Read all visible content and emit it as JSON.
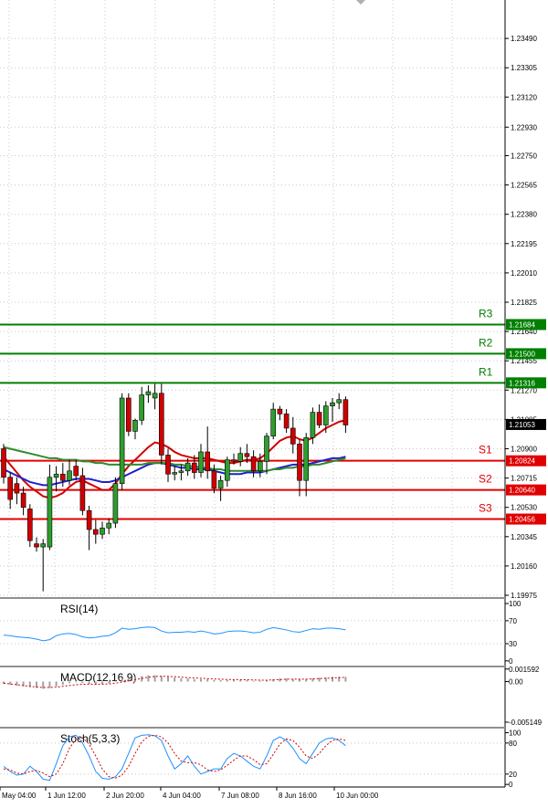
{
  "chart_data": {
    "type": "candlestick",
    "price_axis": {
      "ticks": [
        "1.23490",
        "1.23305",
        "1.23120",
        "1.22930",
        "1.22750",
        "1.22565",
        "1.22380",
        "1.22195",
        "1.22010",
        "1.21825",
        "1.21640",
        "1.21455",
        "1.21270",
        "1.21085",
        "1.20900",
        "1.20715",
        "1.20530",
        "1.20345",
        "1.20160",
        "1.19975"
      ],
      "range": [
        1.19975,
        1.23675
      ]
    },
    "time_axis": {
      "ticks": [
        "May 04:00",
        "1 Jun 12:00",
        "2 Jun 20:00",
        "4 Jun 04:00",
        "7 Jun 08:00",
        "8 Jun 16:00",
        "10 Jun 00:00"
      ]
    },
    "current_price": "1.21053",
    "levels": [
      {
        "name": "R3",
        "value": 1.21684,
        "label": "1.21684",
        "color": "#008000"
      },
      {
        "name": "R2",
        "value": 1.215,
        "label": "1.21500",
        "color": "#008000"
      },
      {
        "name": "R1",
        "value": 1.21316,
        "label": "1.21316",
        "color": "#008000"
      },
      {
        "name": "S1",
        "value": 1.20824,
        "label": "1.20824",
        "color": "#e00000"
      },
      {
        "name": "S2",
        "value": 1.2064,
        "label": "1.20640",
        "color": "#e00000"
      },
      {
        "name": "S3",
        "value": 1.20456,
        "label": "1.20456",
        "color": "#e00000"
      }
    ],
    "candles": [
      {
        "o": 1.209,
        "h": 1.2093,
        "l": 1.2068,
        "c": 1.2072
      },
      {
        "o": 1.2072,
        "h": 1.2075,
        "l": 1.2052,
        "c": 1.2058
      },
      {
        "o": 1.2068,
        "h": 1.2072,
        "l": 1.2055,
        "c": 1.2062
      },
      {
        "o": 1.2062,
        "h": 1.2066,
        "l": 1.2048,
        "c": 1.2053
      },
      {
        "o": 1.2052,
        "h": 1.2055,
        "l": 1.2028,
        "c": 1.2032
      },
      {
        "o": 1.203,
        "h": 1.2034,
        "l": 1.2025,
        "c": 1.2028
      },
      {
        "o": 1.2028,
        "h": 1.2033,
        "l": 1.2,
        "c": 1.203
      },
      {
        "o": 1.2028,
        "h": 1.208,
        "l": 1.2026,
        "c": 1.2072
      },
      {
        "o": 1.2072,
        "h": 1.2079,
        "l": 1.2063,
        "c": 1.2074
      },
      {
        "o": 1.2074,
        "h": 1.2081,
        "l": 1.2066,
        "c": 1.207
      },
      {
        "o": 1.207,
        "h": 1.2083,
        "l": 1.2067,
        "c": 1.2076
      },
      {
        "o": 1.2079,
        "h": 1.2083,
        "l": 1.207,
        "c": 1.2073
      },
      {
        "o": 1.2073,
        "h": 1.2078,
        "l": 1.2048,
        "c": 1.2051
      },
      {
        "o": 1.2051,
        "h": 1.2054,
        "l": 1.2026,
        "c": 1.2039
      },
      {
        "o": 1.2039,
        "h": 1.2045,
        "l": 1.203,
        "c": 1.2036
      },
      {
        "o": 1.2036,
        "h": 1.2044,
        "l": 1.2033,
        "c": 1.204
      },
      {
        "o": 1.204,
        "h": 1.2046,
        "l": 1.2036,
        "c": 1.2043
      },
      {
        "o": 1.2043,
        "h": 1.2072,
        "l": 1.204,
        "c": 1.2068
      },
      {
        "o": 1.2068,
        "h": 1.2125,
        "l": 1.2064,
        "c": 1.2122
      },
      {
        "o": 1.2122,
        "h": 1.2125,
        "l": 1.2098,
        "c": 1.2101
      },
      {
        "o": 1.2101,
        "h": 1.2109,
        "l": 1.2096,
        "c": 1.2108
      },
      {
        "o": 1.2108,
        "h": 1.2129,
        "l": 1.2105,
        "c": 1.2124
      },
      {
        "o": 1.2124,
        "h": 1.213,
        "l": 1.2119,
        "c": 1.2126
      },
      {
        "o": 1.2122,
        "h": 1.2131,
        "l": 1.2115,
        "c": 1.2125
      },
      {
        "o": 1.2125,
        "h": 1.2131,
        "l": 1.208,
        "c": 1.2086
      },
      {
        "o": 1.2086,
        "h": 1.209,
        "l": 1.2069,
        "c": 1.2074
      },
      {
        "o": 1.2074,
        "h": 1.2079,
        "l": 1.207,
        "c": 1.2075
      },
      {
        "o": 1.2075,
        "h": 1.208,
        "l": 1.207,
        "c": 1.2076
      },
      {
        "o": 1.2076,
        "h": 1.2084,
        "l": 1.2073,
        "c": 1.2081
      },
      {
        "o": 1.2081,
        "h": 1.2086,
        "l": 1.2071,
        "c": 1.2075
      },
      {
        "o": 1.2075,
        "h": 1.2093,
        "l": 1.2072,
        "c": 1.2088
      },
      {
        "o": 1.2088,
        "h": 1.2104,
        "l": 1.2071,
        "c": 1.2076
      },
      {
        "o": 1.2076,
        "h": 1.208,
        "l": 1.2062,
        "c": 1.2065
      },
      {
        "o": 1.2065,
        "h": 1.2073,
        "l": 1.2057,
        "c": 1.207
      },
      {
        "o": 1.207,
        "h": 1.2085,
        "l": 1.2066,
        "c": 1.2083
      },
      {
        "o": 1.2083,
        "h": 1.2087,
        "l": 1.208,
        "c": 1.2082
      },
      {
        "o": 1.2082,
        "h": 1.2091,
        "l": 1.2079,
        "c": 1.2087
      },
      {
        "o": 1.2087,
        "h": 1.2093,
        "l": 1.2081,
        "c": 1.2085
      },
      {
        "o": 1.2085,
        "h": 1.2089,
        "l": 1.2072,
        "c": 1.2076
      },
      {
        "o": 1.2076,
        "h": 1.2087,
        "l": 1.2072,
        "c": 1.2082
      },
      {
        "o": 1.2082,
        "h": 1.21,
        "l": 1.2074,
        "c": 1.2098
      },
      {
        "o": 1.2098,
        "h": 1.2119,
        "l": 1.2096,
        "c": 1.2115
      },
      {
        "o": 1.2115,
        "h": 1.2117,
        "l": 1.2108,
        "c": 1.2112
      },
      {
        "o": 1.2112,
        "h": 1.2115,
        "l": 1.21,
        "c": 1.2103
      },
      {
        "o": 1.2103,
        "h": 1.211,
        "l": 1.2087,
        "c": 1.2093
      },
      {
        "o": 1.2093,
        "h": 1.2096,
        "l": 1.206,
        "c": 1.207
      },
      {
        "o": 1.207,
        "h": 1.21,
        "l": 1.206,
        "c": 1.2097
      },
      {
        "o": 1.2097,
        "h": 1.2116,
        "l": 1.2093,
        "c": 1.2113
      },
      {
        "o": 1.2113,
        "h": 1.2118,
        "l": 1.2103,
        "c": 1.2105
      },
      {
        "o": 1.2105,
        "h": 1.212,
        "l": 1.21,
        "c": 1.2117
      },
      {
        "o": 1.2117,
        "h": 1.2122,
        "l": 1.2107,
        "c": 1.2119
      },
      {
        "o": 1.2119,
        "h": 1.2125,
        "l": 1.2115,
        "c": 1.2121
      },
      {
        "o": 1.2121,
        "h": 1.2123,
        "l": 1.21,
        "c": 1.2105
      }
    ],
    "moving_averages": [
      {
        "color": "#d00000",
        "values": [
          1.2085,
          1.208,
          1.2075,
          1.207,
          1.2066,
          1.2063,
          1.206,
          1.2059,
          1.206,
          1.2062,
          1.2066,
          1.2069,
          1.207,
          1.2068,
          1.2066,
          1.2064,
          1.2064,
          1.2068,
          1.2074,
          1.2079,
          1.2083,
          1.2087,
          1.2091,
          1.2094,
          1.2093,
          1.2091,
          1.2088,
          1.2086,
          1.2085,
          1.2084,
          1.2084,
          1.2084,
          1.2083,
          1.2082,
          1.2081,
          1.2081,
          1.2082,
          1.2083,
          1.2083,
          1.2084,
          1.2087,
          1.2091,
          1.2095,
          1.2097,
          1.2098,
          1.2096,
          1.2095,
          1.2097,
          1.21,
          1.2103,
          1.2105,
          1.2107,
          1.2108
        ]
      },
      {
        "color": "#2020cc",
        "values": [
          1.2077,
          1.2075,
          1.2073,
          1.2071,
          1.2069,
          1.2068,
          1.2067,
          1.2067,
          1.2068,
          1.2069,
          1.207,
          1.2071,
          1.2071,
          1.2071,
          1.207,
          1.2069,
          1.2069,
          1.207,
          1.2072,
          1.2074,
          1.2076,
          1.2078,
          1.208,
          1.2081,
          1.2081,
          1.208,
          1.2079,
          1.2078,
          1.2078,
          1.2077,
          1.2077,
          1.2077,
          1.2076,
          1.2075,
          1.2074,
          1.2074,
          1.2074,
          1.2075,
          1.2075,
          1.2075,
          1.2076,
          1.2077,
          1.2078,
          1.2079,
          1.208,
          1.208,
          1.208,
          1.2081,
          1.2082,
          1.2083,
          1.2084,
          1.2084,
          1.2085
        ]
      },
      {
        "color": "#2e8b2e",
        "values": [
          1.2091,
          1.209,
          1.2089,
          1.2088,
          1.2087,
          1.2086,
          1.2085,
          1.2084,
          1.2084,
          1.2083,
          1.2083,
          1.2083,
          1.2082,
          1.2082,
          1.2081,
          1.2081,
          1.208,
          1.208,
          1.208,
          1.208,
          1.208,
          1.208,
          1.2081,
          1.2081,
          1.2081,
          1.2081,
          1.208,
          1.208,
          1.2079,
          1.2079,
          1.2078,
          1.2078,
          1.2077,
          1.2077,
          1.2076,
          1.2076,
          1.2076,
          1.2076,
          1.2076,
          1.2076,
          1.2076,
          1.2077,
          1.2077,
          1.2078,
          1.2078,
          1.2079,
          1.2079,
          1.208,
          1.208,
          1.2081,
          1.2082,
          1.2083,
          1.2084
        ]
      }
    ],
    "rsi": {
      "label": "RSI(14)",
      "ticks": [
        "100",
        "70",
        "30",
        "0"
      ],
      "color": "#1e90ff",
      "values": [
        45,
        44,
        42,
        41,
        40,
        38,
        35,
        37,
        44,
        47,
        48,
        46,
        42,
        40,
        41,
        43,
        44,
        49,
        57,
        55,
        56,
        58,
        59,
        58,
        52,
        49,
        50,
        50,
        51,
        50,
        52,
        50,
        47,
        48,
        51,
        52,
        52,
        51,
        49,
        50,
        55,
        58,
        56,
        54,
        51,
        50,
        53,
        56,
        55,
        57,
        57,
        56,
        54
      ]
    },
    "macd": {
      "label": "MACD(12,16,9)",
      "ticks": [
        "0.001592",
        "0.00",
        "-0.005149"
      ],
      "hist_color": "#a0a0a0",
      "signal_color": "#d00000",
      "histogram": [
        -0.0003,
        -0.0004,
        -0.0005,
        -0.0006,
        -0.0007,
        -0.0008,
        -0.0009,
        -0.0008,
        -0.0006,
        -0.0004,
        -0.0002,
        -0.0001,
        -0.0002,
        -0.0003,
        -0.0004,
        -0.0003,
        -0.0002,
        0.0001,
        0.0004,
        0.0005,
        0.0006,
        0.0007,
        0.0008,
        0.0008,
        0.0007,
        0.0006,
        0.0005,
        0.0004,
        0.0004,
        0.0003,
        0.0003,
        0.0003,
        0.0002,
        0.0002,
        0.0002,
        0.0002,
        0.0002,
        0.0002,
        0.0001,
        0.0001,
        0.0002,
        0.0003,
        0.0004,
        0.0004,
        0.0003,
        0.0003,
        0.0003,
        0.0004,
        0.0005,
        0.0005,
        0.0006,
        0.0006,
        0.0006
      ],
      "signal": [
        -0.0002,
        -0.0003,
        -0.0004,
        -0.0005,
        -0.0006,
        -0.0007,
        -0.00075,
        -0.00075,
        -0.0007,
        -0.0006,
        -0.0005,
        -0.0004,
        -0.00035,
        -0.00033,
        -0.00034,
        -0.00033,
        -0.0003,
        -0.0002,
        -5e-05,
        0.0001,
        0.00025,
        0.0004,
        0.00055,
        0.00065,
        0.00068,
        0.00066,
        0.00062,
        0.00056,
        0.00051,
        0.00046,
        0.00042,
        0.00038,
        0.00034,
        0.0003,
        0.00027,
        0.00025,
        0.00024,
        0.00023,
        0.00021,
        0.00018,
        0.00018,
        0.00021,
        0.00025,
        0.0003,
        0.00031,
        0.00031,
        0.00031,
        0.00034,
        0.00038,
        0.00042,
        0.00046,
        0.0005,
        0.00053
      ]
    },
    "stoch": {
      "label": "Stoch(5,3,3)",
      "ticks": [
        "100",
        "80",
        "20",
        "0"
      ],
      "main_color": "#1e90ff",
      "signal_color": "#d00000",
      "main": [
        35,
        25,
        18,
        20,
        35,
        25,
        10,
        8,
        40,
        75,
        92,
        95,
        80,
        55,
        25,
        12,
        10,
        15,
        30,
        60,
        90,
        95,
        96,
        94,
        85,
        55,
        30,
        40,
        55,
        35,
        20,
        25,
        30,
        30,
        50,
        60,
        55,
        45,
        35,
        30,
        55,
        85,
        92,
        85,
        70,
        50,
        40,
        60,
        80,
        88,
        90,
        85,
        75
      ],
      "signal": [
        30,
        28,
        22,
        20,
        25,
        27,
        22,
        15,
        20,
        40,
        70,
        88,
        90,
        78,
        55,
        30,
        15,
        12,
        18,
        35,
        60,
        82,
        93,
        95,
        92,
        80,
        60,
        45,
        42,
        42,
        38,
        28,
        25,
        28,
        37,
        47,
        55,
        55,
        48,
        38,
        40,
        58,
        78,
        88,
        85,
        72,
        55,
        50,
        60,
        75,
        85,
        88,
        85
      ]
    }
  }
}
